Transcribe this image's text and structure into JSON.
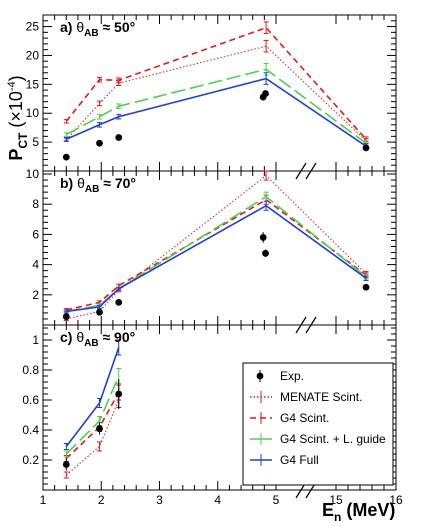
{
  "chart_data": {
    "type": "line",
    "xlabel": "E",
    "xlabel_sub": "n",
    "xlabel_unit": " (MeV)",
    "ylabel": "P",
    "ylabel_sub": "CT",
    "ylabel_factor": " (×10",
    "ylabel_exp": "-4",
    "ylabel_close": ")",
    "x_ticks": [
      "1",
      "2",
      "3",
      "4",
      "5",
      "15",
      "16"
    ],
    "legend": [
      "Exp.",
      "MENATE Scint.",
      "G4 Scint.",
      "G4 Scint. + L. guide",
      "G4 Full"
    ],
    "colors": {
      "exp": "#000000",
      "menate": "#e31a1c",
      "g4scint": "#e31a1c",
      "lguide": "#4fd14f",
      "full": "#1f3fd8"
    },
    "panels": [
      {
        "letter": "a)",
        "theta": "θ",
        "theta_sub": "AB",
        "angle": " ≈ 50°",
        "ylim": [
          0,
          27
        ],
        "y_ticks": [
          5,
          10,
          15,
          20,
          25
        ],
        "x": [
          1.4,
          1.97,
          2.3,
          4.83,
          15.5
        ],
        "series": [
          {
            "name": "MENATE Scint.",
            "values": [
              5.4,
              11.7,
              15.2,
              21.6,
              5.2
            ],
            "err": [
              0.3,
              0.4,
              0.4,
              1.0,
              0.4
            ]
          },
          {
            "name": "G4 Scint.",
            "values": [
              8.6,
              15.8,
              15.7,
              24.8,
              5.5
            ],
            "err": [
              0.3,
              0.4,
              0.4,
              1.0,
              0.4
            ]
          },
          {
            "name": "G4 Scint. + L. guide",
            "values": [
              6.3,
              9.4,
              11.2,
              17.6,
              4.8
            ],
            "err": [
              0.3,
              0.4,
              0.4,
              1.0,
              0.4
            ]
          },
          {
            "name": "G4 Full",
            "values": [
              5.5,
              8.0,
              9.4,
              16.0,
              4.3
            ],
            "err": [
              0.3,
              0.4,
              0.4,
              1.0,
              0.4
            ]
          }
        ],
        "exp": {
          "x": [
            1.4,
            1.97,
            2.3,
            4.78,
            4.82,
            15.5
          ],
          "values": [
            2.4,
            4.8,
            5.8,
            12.8,
            13.4,
            4.0
          ],
          "err": [
            0.3,
            0.3,
            0.3,
            0.5,
            0.5,
            0.3
          ]
        },
        "menate_x": [
          1.4,
          1.97,
          2.3,
          4.83,
          15.5
        ]
      },
      {
        "letter": "b)",
        "theta": "θ",
        "theta_sub": "AB",
        "angle": " ≈ 70°",
        "ylim": [
          0,
          10.2
        ],
        "y_ticks": [
          2,
          4,
          6,
          8,
          10
        ],
        "x": [
          1.4,
          1.97,
          2.3,
          4.83,
          15.5
        ],
        "series": [
          {
            "name": "MENATE Scint.",
            "values": [
              0.4,
              0.9,
              2.3,
              9.9,
              3.4
            ],
            "err": [
              0.1,
              0.1,
              0.1,
              0.3,
              0.15
            ]
          },
          {
            "name": "G4 Scint.",
            "values": [
              1.0,
              1.5,
              2.6,
              8.3,
              3.3
            ],
            "err": [
              0.1,
              0.1,
              0.1,
              0.3,
              0.15
            ]
          },
          {
            "name": "G4 Scint. + L. guide",
            "values": [
              0.9,
              1.3,
              2.4,
              8.5,
              3.2
            ],
            "err": [
              0.1,
              0.1,
              0.1,
              0.3,
              0.15
            ]
          },
          {
            "name": "G4 Full",
            "values": [
              0.9,
              1.2,
              2.4,
              7.9,
              3.1
            ],
            "err": [
              0.1,
              0.1,
              0.1,
              0.3,
              0.15
            ]
          }
        ],
        "exp": {
          "x": [
            1.4,
            1.97,
            2.3,
            4.78,
            4.82,
            15.5
          ],
          "values": [
            0.55,
            0.85,
            1.5,
            5.8,
            4.75,
            2.5
          ],
          "err": [
            0.1,
            0.1,
            0.1,
            0.35,
            0.25,
            0.1
          ]
        }
      },
      {
        "letter": "c)",
        "theta": "θ",
        "theta_sub": "AB",
        "angle": " ≈ 90°",
        "ylim": [
          0,
          1.1
        ],
        "y_ticks": [
          0.2,
          0.4,
          0.6,
          0.8,
          1
        ],
        "x": [
          1.4,
          1.97,
          2.3
        ],
        "series": [
          {
            "name": "MENATE Scint.",
            "values": [
              0.1,
              0.29,
              0.6
            ],
            "err": [
              0.02,
              0.03,
              0.05
            ]
          },
          {
            "name": "G4 Scint.",
            "values": [
              0.21,
              0.42,
              0.65
            ],
            "err": [
              0.02,
              0.03,
              0.05
            ]
          },
          {
            "name": "G4 Scint. + L. guide",
            "values": [
              0.24,
              0.46,
              0.76
            ],
            "err": [
              0.02,
              0.03,
              0.05
            ]
          },
          {
            "name": "G4 Full",
            "values": [
              0.29,
              0.58,
              0.95
            ],
            "err": [
              0.02,
              0.03,
              0.05
            ]
          }
        ],
        "exp": {
          "x": [
            1.4,
            1.97,
            2.3
          ],
          "values": [
            0.17,
            0.41,
            0.64
          ],
          "err": [
            0.04,
            0.04,
            0.1
          ]
        }
      }
    ]
  }
}
